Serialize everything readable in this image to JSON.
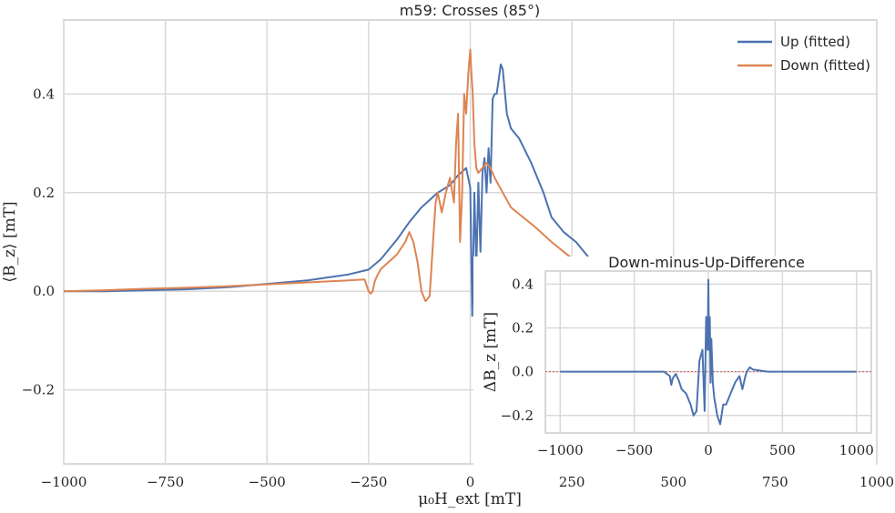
{
  "chart_data": [
    {
      "type": "line",
      "title": "m59: Crosses (85°)",
      "xlabel": "μ₀H_ext [mT]",
      "ylabel": "⟨B_z⟩ [mT]",
      "xlim": [
        -1000,
        1000
      ],
      "ylim": [
        -0.35,
        0.55
      ],
      "xticks": [
        -1000,
        -750,
        -500,
        -250,
        0,
        250,
        500,
        750,
        1000
      ],
      "xtick_labels": [
        "−1000",
        "−750",
        "−500",
        "−250",
        "0",
        "250",
        "500",
        "750",
        "1000"
      ],
      "yticks": [
        -0.2,
        0.0,
        0.2,
        0.4
      ],
      "ytick_labels": [
        "−0.2",
        "0.0",
        "0.2",
        "0.4"
      ],
      "grid": true,
      "legend": "top-right",
      "colors": {
        "up": "#4c72b0",
        "down": "#dd8452"
      },
      "series": [
        {
          "name": "Up (fitted)",
          "x": [
            -1000,
            -900,
            -800,
            -700,
            -600,
            -500,
            -400,
            -350,
            -300,
            -250,
            -220,
            -200,
            -180,
            -150,
            -120,
            -100,
            -80,
            -50,
            -30,
            -10,
            0,
            5,
            10,
            15,
            20,
            25,
            30,
            35,
            40,
            45,
            50,
            55,
            60,
            65,
            70,
            75,
            80,
            90,
            100,
            120,
            150,
            180,
            200,
            230,
            260,
            300
          ],
          "y": [
            0.0,
            0.0,
            0.002,
            0.004,
            0.008,
            0.015,
            0.022,
            0.028,
            0.034,
            0.044,
            0.065,
            0.085,
            0.105,
            0.14,
            0.17,
            0.185,
            0.2,
            0.215,
            0.235,
            0.25,
            0.21,
            -0.05,
            0.2,
            0.05,
            0.22,
            0.08,
            0.24,
            0.27,
            0.2,
            0.29,
            0.22,
            0.39,
            0.4,
            0.4,
            0.43,
            0.46,
            0.45,
            0.36,
            0.33,
            0.31,
            0.26,
            0.2,
            0.15,
            0.12,
            0.1,
            0.06
          ]
        },
        {
          "name": "Down (fitted)",
          "x": [
            -1000,
            -900,
            -800,
            -700,
            -600,
            -500,
            -400,
            -350,
            -300,
            -260,
            -250,
            -245,
            -240,
            -235,
            -230,
            -220,
            -200,
            -180,
            -160,
            -150,
            -140,
            -130,
            -120,
            -110,
            -100,
            -90,
            -85,
            -80,
            -70,
            -60,
            -50,
            -40,
            -35,
            -30,
            -25,
            -20,
            -15,
            -10,
            -5,
            0,
            3,
            6,
            10,
            15,
            20,
            30,
            40,
            50,
            60,
            80,
            100,
            130,
            160,
            200,
            230,
            260,
            300
          ],
          "y": [
            0.0,
            0.002,
            0.005,
            0.007,
            0.01,
            0.014,
            0.018,
            0.02,
            0.022,
            0.024,
            0.0,
            -0.005,
            0.0,
            0.02,
            0.03,
            0.045,
            0.06,
            0.075,
            0.1,
            0.12,
            0.1,
            0.06,
            0.0,
            -0.02,
            -0.01,
            0.12,
            0.18,
            0.2,
            0.16,
            0.2,
            0.23,
            0.18,
            0.3,
            0.36,
            0.1,
            0.2,
            0.4,
            0.36,
            0.44,
            0.49,
            0.44,
            0.4,
            0.3,
            0.25,
            0.24,
            0.25,
            0.26,
            0.25,
            0.23,
            0.2,
            0.17,
            0.15,
            0.13,
            0.1,
            0.08,
            0.06,
            0.04
          ]
        }
      ]
    },
    {
      "type": "line",
      "title": "Down-minus-Up-Difference",
      "ylabel": "ΔB_z [mT]",
      "xlim": [
        -1100,
        1100
      ],
      "ylim": [
        -0.28,
        0.46
      ],
      "xticks": [
        -1000,
        -500,
        0,
        500,
        1000
      ],
      "xtick_labels": [
        "−1000",
        "−500",
        "0",
        "500",
        "1000"
      ],
      "yticks": [
        -0.2,
        0.0,
        0.2,
        0.4
      ],
      "ytick_labels": [
        "−0.2",
        "0.0",
        "0.2",
        "0.4"
      ],
      "grid": true,
      "reference_line_y": 0.0,
      "series": [
        {
          "x": [
            -1000,
            -800,
            -600,
            -400,
            -300,
            -260,
            -250,
            -240,
            -220,
            -200,
            -180,
            -150,
            -120,
            -100,
            -80,
            -60,
            -40,
            -25,
            -15,
            -5,
            0,
            5,
            10,
            15,
            20,
            30,
            40,
            60,
            80,
            100,
            120,
            150,
            180,
            210,
            230,
            250,
            260,
            280,
            300,
            400,
            600,
            800,
            1000
          ],
          "y": [
            0.0,
            0.0,
            0.0,
            0.0,
            0.0,
            -0.02,
            -0.06,
            -0.03,
            -0.01,
            -0.04,
            -0.08,
            -0.1,
            -0.15,
            -0.2,
            -0.18,
            0.05,
            0.1,
            -0.18,
            0.25,
            0.1,
            0.42,
            0.1,
            0.25,
            -0.05,
            0.15,
            -0.05,
            -0.12,
            -0.2,
            -0.24,
            -0.15,
            -0.15,
            -0.1,
            -0.05,
            -0.02,
            -0.08,
            -0.02,
            0.0,
            0.02,
            0.01,
            0.0,
            0.0,
            0.0,
            0.0
          ]
        }
      ]
    }
  ]
}
